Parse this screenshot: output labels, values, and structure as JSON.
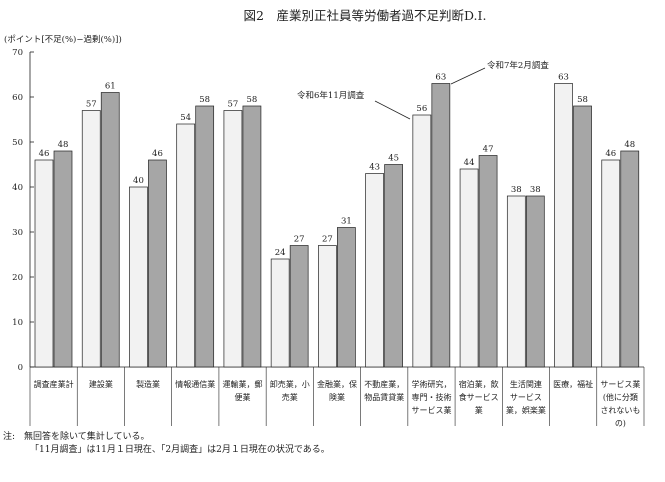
{
  "chart_data": {
    "type": "bar",
    "title": "図2　産業別正社員等労働者過不足判断D.I.",
    "ylabel": "(ポイント[不足(%)−過剰(%)])",
    "ylim": [
      0,
      70
    ],
    "yticks": [
      0,
      10,
      20,
      30,
      40,
      50,
      60,
      70
    ],
    "grid": false,
    "categories": [
      [
        "調査産業計"
      ],
      [
        "建設業"
      ],
      [
        "製造業"
      ],
      [
        "情報通信業"
      ],
      [
        "運輸業，郵",
        "便業"
      ],
      [
        "卸売業，小",
        "売業"
      ],
      [
        "金融業，保",
        "険業"
      ],
      [
        "不動産業，",
        "物品賃貸業"
      ],
      [
        "学術研究，",
        "専門・技術",
        "サービス業"
      ],
      [
        "宿泊業，飲",
        "食サービス",
        "業"
      ],
      [
        "生活関連",
        "サービス",
        "業，娯楽業"
      ],
      [
        "医療，福祉"
      ],
      [
        "サービス業",
        "(他に分類",
        "されないも",
        "の)"
      ]
    ],
    "series": [
      {
        "name": "令和6年11月調査",
        "color": "#f2f2f2",
        "values": [
          46,
          57,
          40,
          54,
          57,
          24,
          27,
          43,
          56,
          44,
          38,
          63,
          46
        ]
      },
      {
        "name": "令和7年2月調査",
        "color": "#a6a6a6",
        "values": [
          48,
          61,
          46,
          58,
          58,
          27,
          31,
          45,
          63,
          47,
          38,
          58,
          48
        ]
      }
    ],
    "annotations": [
      "令和6年11月調査",
      "令和7年2月調査"
    ]
  },
  "notes": {
    "line1": "注:　無回答を除いて集計している。",
    "line2": "「11月調査」は11月１日現在、「2月調査」は2月１日現在の状況である。"
  }
}
